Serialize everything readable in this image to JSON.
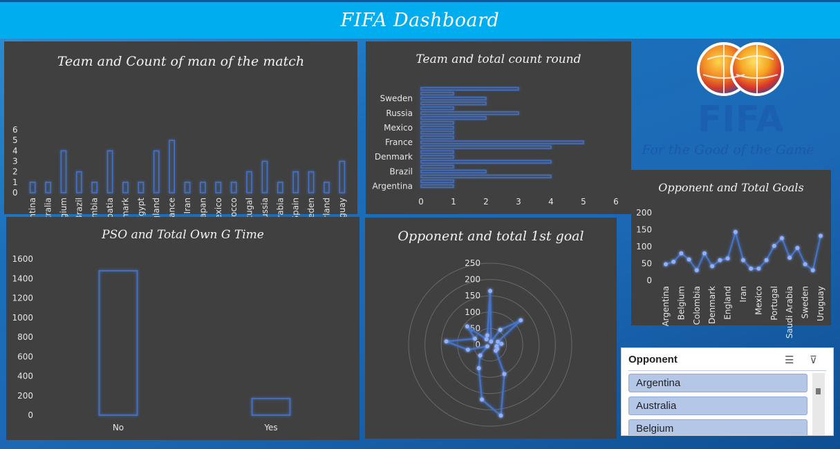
{
  "header": {
    "title": "FIFA Dashboard"
  },
  "logo": {
    "wordmark": "FIFA",
    "slogan": "For the Good of the Game"
  },
  "slicer": {
    "title": "Opponent",
    "items": [
      "Argentina",
      "Australia",
      "Belgium"
    ]
  },
  "colors": {
    "accent": "#4472c4",
    "glow": "#2f6fff",
    "panel": "#404040",
    "header": "#00aeef"
  },
  "chart_data": [
    {
      "id": "motm",
      "type": "bar",
      "title": "Team and Count of man of the match",
      "categories": [
        "Argentina",
        "Australia",
        "Belgium",
        "Brazil",
        "Colombia",
        "Croatia",
        "Denmark",
        "Egypt",
        "England",
        "France",
        "Iran",
        "Japan",
        "Mexico",
        "Morocco",
        "Portugal",
        "Russia",
        "Saudi Arabia",
        "Spain",
        "Sweden",
        "Switzerland",
        "Uruguay"
      ],
      "values": [
        1,
        1,
        4,
        2,
        1,
        4,
        1,
        1,
        4,
        5,
        1,
        1,
        1,
        1,
        2,
        3,
        1,
        2,
        2,
        1,
        3
      ],
      "yticks": [
        "0",
        "1",
        "2",
        "3",
        "4",
        "5",
        "6"
      ],
      "ylim": [
        0,
        6
      ]
    },
    {
      "id": "round",
      "type": "bar",
      "orientation": "horizontal",
      "title": "Team and total count round",
      "categories_bottom_to_top": [
        "Argentina",
        "Australia",
        "Belgium",
        "Brazil",
        "Colombia",
        "Croatia",
        "Denmark",
        "Egypt",
        "England",
        "France",
        "Iran",
        "Japan",
        "Mexico",
        "Morocco",
        "Portugal",
        "Russia",
        "Saudi Arabia",
        "Spain",
        "Sweden",
        "Switzerland",
        "Uruguay"
      ],
      "visible_labels": [
        "Argentina",
        "Brazil",
        "Denmark",
        "France",
        "Mexico",
        "Russia",
        "Sweden"
      ],
      "values_bottom_to_top": [
        1,
        1,
        4,
        2,
        1,
        4,
        1,
        1,
        4,
        5,
        1,
        1,
        1,
        1,
        2,
        3,
        1,
        2,
        2,
        1,
        3
      ],
      "xticks": [
        "0",
        "1",
        "2",
        "3",
        "4",
        "5",
        "6"
      ],
      "xlim": [
        0,
        6
      ]
    },
    {
      "id": "goals",
      "type": "line",
      "title": "Opponent and Total Goals",
      "categories": [
        "Argentina",
        "Australia",
        "Belgium",
        "Brazil",
        "Colombia",
        "Croatia",
        "Denmark",
        "Egypt",
        "England",
        "France",
        "Iran",
        "Japan",
        "Mexico",
        "Morocco",
        "Portugal",
        "Russia",
        "Saudi Arabia",
        "Spain",
        "Sweden",
        "Switzerland",
        "Uruguay"
      ],
      "visible_labels": [
        "Argentina",
        "Belgium",
        "Colombia",
        "Denmark",
        "England",
        "Iran",
        "Mexico",
        "Portugal",
        "Saudi Arabia",
        "Sweden",
        "Uruguay"
      ],
      "values": [
        48,
        55,
        80,
        62,
        30,
        80,
        42,
        60,
        65,
        143,
        60,
        35,
        35,
        60,
        102,
        125,
        67,
        96,
        48,
        30,
        132
      ],
      "yticks": [
        "0",
        "50",
        "100",
        "150",
        "200"
      ],
      "ylim": [
        0,
        200
      ]
    },
    {
      "id": "pso",
      "type": "bar",
      "title": "PSO and Total Own G Time",
      "categories": [
        "No",
        "Yes"
      ],
      "values": [
        1480,
        170
      ],
      "yticks": [
        "0",
        "200",
        "400",
        "600",
        "800",
        "1000",
        "1200",
        "1400",
        "1600"
      ],
      "ylim": [
        0,
        1600
      ]
    },
    {
      "id": "firstgoal",
      "type": "radar",
      "title": "Opponent and total 1st goal",
      "rticks": [
        "0",
        "50",
        "100",
        "150",
        "200",
        "250"
      ],
      "rlim": [
        0,
        250
      ],
      "values": [
        165,
        10,
        55,
        120,
        25,
        35,
        20,
        25,
        25,
        100,
        220,
        170,
        80,
        45,
        10,
        70,
        135,
        50,
        90,
        20,
        30
      ]
    }
  ]
}
